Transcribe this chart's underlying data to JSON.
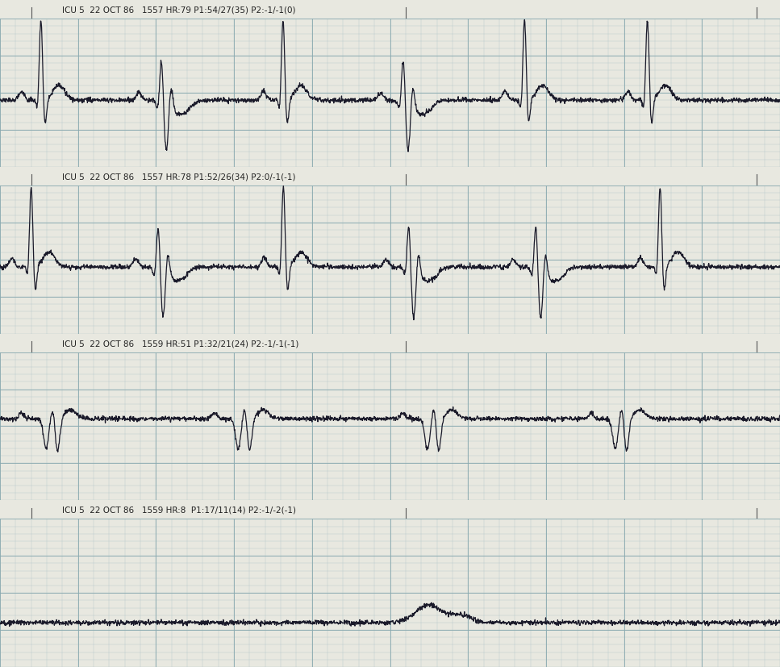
{
  "bg_color": "#e8e8e0",
  "grid_minor_color": "#b0c4c8",
  "grid_major_color": "#8aaab0",
  "ecg_color": "#1a1a2a",
  "text_color": "#222222",
  "label_bg_color": "#d8d8d0",
  "strip_labels": [
    "ICU 5  22 OCT 86   1557 HR:79 P1:54/27(35) P2:-1/-1(0)",
    "ICU 5  22 OCT 86   1557 HR:78 P1:52/26(34) P2:0/-1(-1)",
    "ICU 5  22 OCT 86   1559 HR:51 P1:32/21(24) P2:-1/-1(-1)",
    "ICU 5  22 OCT 86   1559 HR:8  P1:17/11(14) P2:-1/-2(-1)"
  ],
  "figsize": [
    9.67,
    8.27
  ],
  "dpi": 100,
  "label_fontsize": 7.5
}
